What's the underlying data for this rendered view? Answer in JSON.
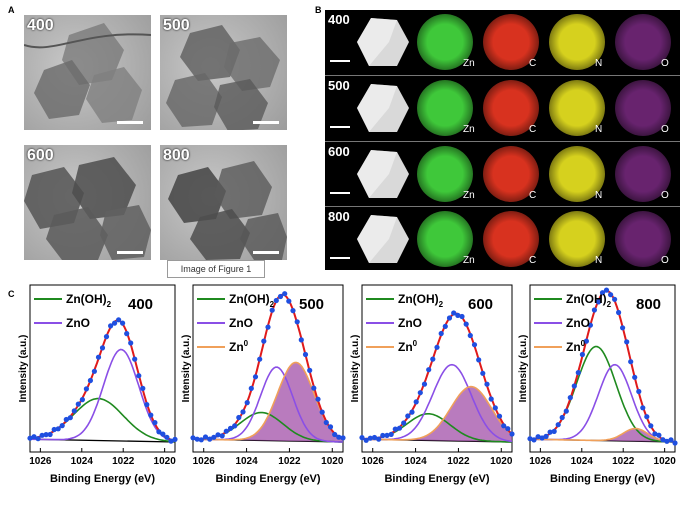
{
  "panels": {
    "a": "A",
    "b": "B",
    "c": "C"
  },
  "tem": [
    {
      "label": "400"
    },
    {
      "label": "500"
    },
    {
      "label": "600"
    },
    {
      "label": "800"
    }
  ],
  "eds": {
    "rows": [
      {
        "label": "400"
      },
      {
        "label": "500"
      },
      {
        "label": "600"
      },
      {
        "label": "800"
      }
    ],
    "elements": [
      "Zn",
      "C",
      "N",
      "O"
    ],
    "colors": {
      "Zn": "#3fc83a",
      "C": "#d8321f",
      "N": "#d6d11e",
      "O": "#8a2f93"
    }
  },
  "tooltip": "Image of Figure 1",
  "xps": {
    "ylabel": "Intensity (a.u.)",
    "xlabel": "Binding Energy (eV)",
    "ticks": [
      "1026",
      "1024",
      "1022",
      "1020"
    ],
    "legend": {
      "znoh2": "Zn(OH)",
      "znoh2_sub": "2",
      "zno": "ZnO",
      "zn0": "Zn",
      "zn0_sup": "0"
    },
    "colors": {
      "data": "#1f4fe0",
      "envelope": "#e01a1a",
      "znoh2": "#1f8a1f",
      "zno": "#8a4fe6",
      "zn0": "#f0a05a",
      "zn0_fill": "#a24fa8",
      "baseline": "#000000"
    }
  },
  "chart_data": [
    {
      "type": "line",
      "title": "400",
      "xlabel": "Binding Energy (eV)",
      "ylabel": "Intensity (a.u.)",
      "xlim": [
        1026.5,
        1019.5
      ],
      "series": [
        {
          "name": "Zn(OH)2",
          "peak": 1023.2,
          "height": 0.33,
          "width": 1.2
        },
        {
          "name": "ZnO",
          "peak": 1022.1,
          "height": 0.72,
          "width": 0.85
        }
      ]
    },
    {
      "type": "line",
      "title": "500",
      "xlabel": "Binding Energy (eV)",
      "ylabel": "Intensity (a.u.)",
      "xlim": [
        1026.5,
        1019.5
      ],
      "series": [
        {
          "name": "Zn(OH)2",
          "peak": 1023.3,
          "height": 0.22,
          "width": 1.0
        },
        {
          "name": "ZnO",
          "peak": 1022.6,
          "height": 0.58,
          "width": 0.75
        },
        {
          "name": "Zn0",
          "peak": 1021.7,
          "height": 0.62,
          "width": 0.85
        }
      ]
    },
    {
      "type": "line",
      "title": "600",
      "xlabel": "Binding Energy (eV)",
      "ylabel": "Intensity (a.u.)",
      "xlim": [
        1026.5,
        1019.5
      ],
      "series": [
        {
          "name": "Zn(OH)2",
          "peak": 1023.4,
          "height": 0.21,
          "width": 1.0
        },
        {
          "name": "ZnO",
          "peak": 1022.3,
          "height": 0.6,
          "width": 0.9
        },
        {
          "name": "Zn0",
          "peak": 1021.4,
          "height": 0.43,
          "width": 0.95
        }
      ]
    },
    {
      "type": "line",
      "title": "800",
      "xlabel": "Binding Energy (eV)",
      "ylabel": "Intensity (a.u.)",
      "xlim": [
        1026.5,
        1019.5
      ],
      "series": [
        {
          "name": "Zn(OH)2",
          "peak": 1023.3,
          "height": 0.74,
          "width": 0.95
        },
        {
          "name": "ZnO",
          "peak": 1022.4,
          "height": 0.6,
          "width": 0.8
        },
        {
          "name": "Zn0",
          "peak": 1021.4,
          "height": 0.1,
          "width": 0.6
        }
      ]
    }
  ]
}
